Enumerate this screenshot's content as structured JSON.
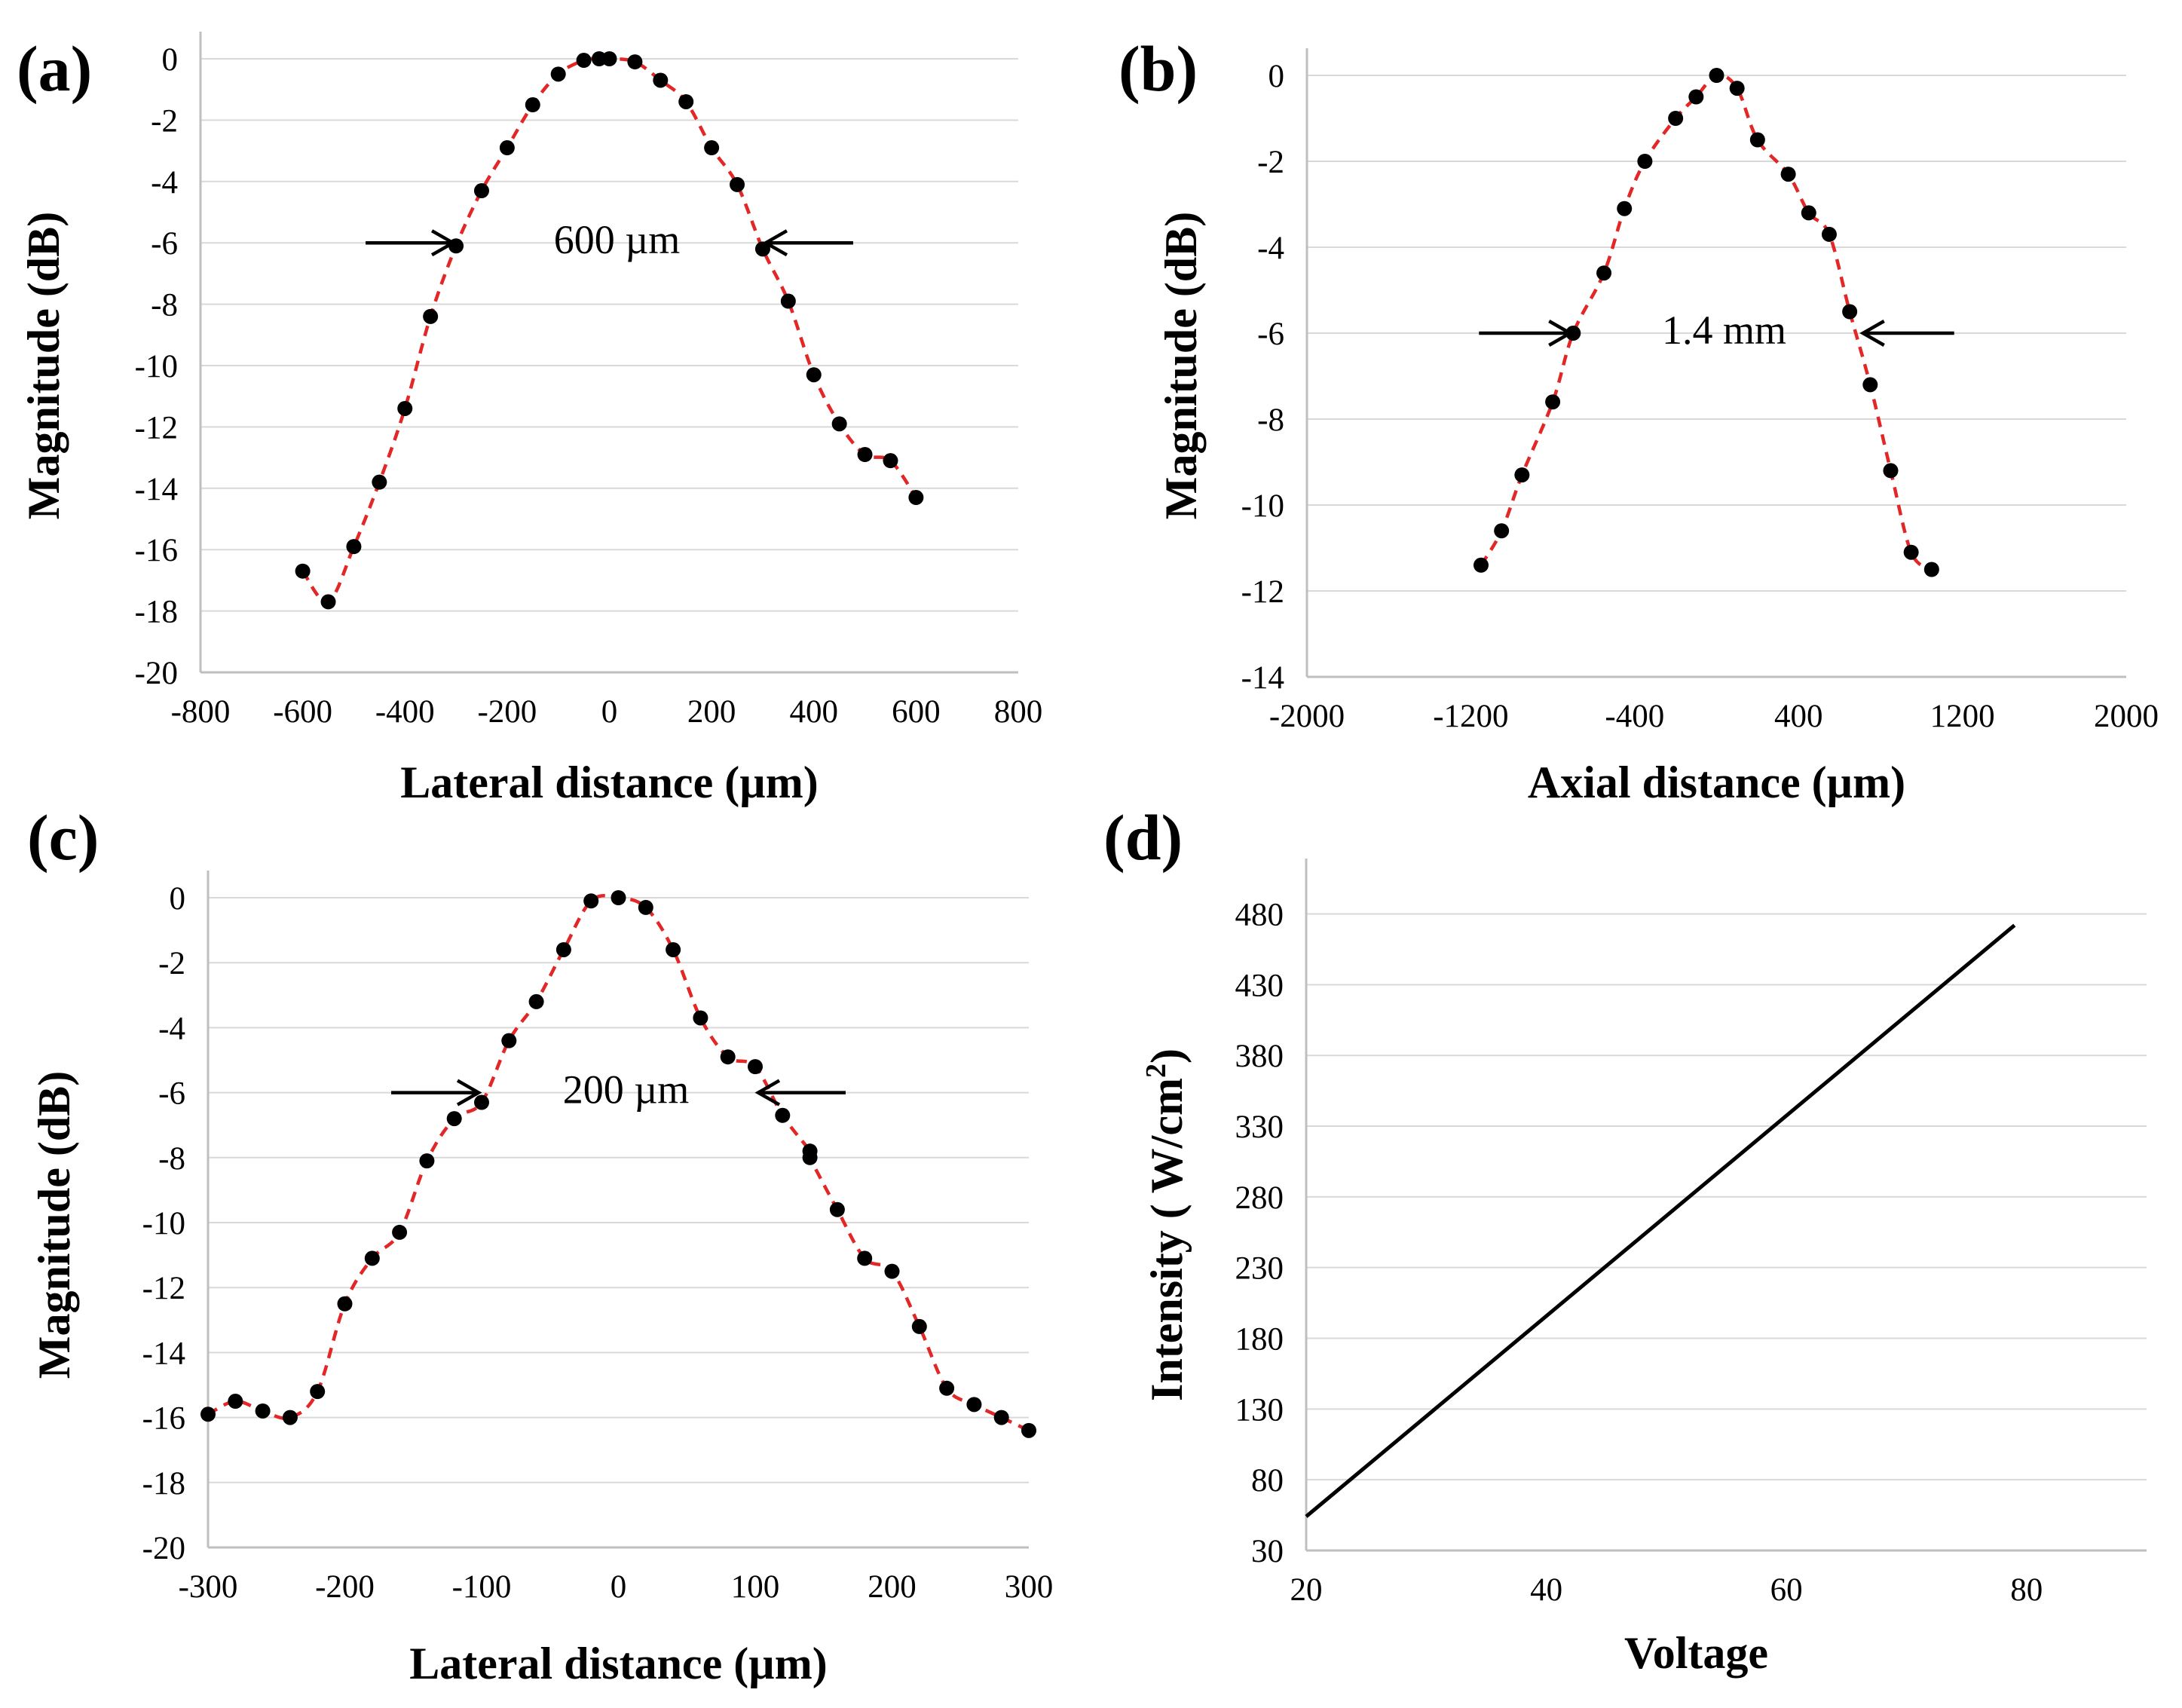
{
  "colors": {
    "fit_line": "#e32626",
    "marker": "#000000",
    "intensity_line": "#000000",
    "gridline": "#d9d9d9"
  },
  "chart_data": [
    {
      "panel": "(a)",
      "type": "scatter",
      "xlabel": "Lateral distance (µm)",
      "ylabel": "Magnitude (dB)",
      "xlim": [
        -800,
        800
      ],
      "ylim": [
        -20,
        0
      ],
      "xticks": [
        -800,
        -600,
        -400,
        -200,
        0,
        200,
        400,
        600,
        800
      ],
      "yticks": [
        0,
        -2,
        -4,
        -6,
        -8,
        -10,
        -12,
        -14,
        -16,
        -18,
        -20
      ],
      "grid": "horizontal",
      "legend": "none",
      "annotation": "600 µm",
      "annotation_markers": [
        -300,
        300
      ],
      "markers": "black circles",
      "fit_line": "red dashed",
      "x": [
        -600,
        -550,
        -500,
        -450,
        -400,
        -350,
        -300,
        -250,
        -200,
        -150,
        -100,
        -50,
        -20,
        0,
        50,
        100,
        150,
        200,
        250,
        300,
        350,
        400,
        450,
        500,
        550,
        600
      ],
      "y": [
        -16.7,
        -17.7,
        -15.9,
        -13.8,
        -11.4,
        -8.4,
        -6.1,
        -4.3,
        -2.9,
        -1.5,
        -0.5,
        -0.05,
        0,
        0,
        -0.1,
        -0.7,
        -1.4,
        -2.9,
        -4.1,
        -6.2,
        -7.9,
        -10.3,
        -11.9,
        -12.9,
        -13.1,
        -14.3
      ]
    },
    {
      "panel": "(b)",
      "type": "scatter",
      "xlabel": "Axial distance (µm)",
      "ylabel": "Magnitude (dB)",
      "xlim": [
        -2000,
        2000
      ],
      "ylim": [
        -14,
        0
      ],
      "xticks": [
        -2000,
        -1200,
        -400,
        400,
        1200,
        2000
      ],
      "yticks": [
        0,
        -2,
        -4,
        -6,
        -8,
        -10,
        -12,
        -14
      ],
      "grid": "horizontal",
      "legend": "none",
      "annotation": "1.4 mm",
      "annotation_markers": [
        -700,
        700
      ],
      "markers": "black circles",
      "fit_line": "red dashed",
      "x": [
        -1150,
        -1050,
        -950,
        -800,
        -700,
        -550,
        -450,
        -350,
        -200,
        -100,
        0,
        100,
        200,
        350,
        450,
        550,
        650,
        750,
        850,
        950,
        1050
      ],
      "y": [
        -11.4,
        -10.6,
        -9.3,
        -7.6,
        -6.0,
        -4.6,
        -3.1,
        -2.0,
        -1.0,
        -0.5,
        0,
        -0.3,
        -1.5,
        -2.3,
        -3.2,
        -3.7,
        -5.5,
        -7.2,
        -9.2,
        -11.1,
        -11.5
      ]
    },
    {
      "panel": "(c)",
      "type": "scatter",
      "xlabel": "Lateral distance (µm)",
      "ylabel": "Magnitude (dB)",
      "xlim": [
        -300,
        300
      ],
      "ylim": [
        -20,
        0
      ],
      "xticks": [
        -300,
        -200,
        -100,
        0,
        100,
        200,
        300
      ],
      "yticks": [
        0,
        -2,
        -4,
        -6,
        -8,
        -10,
        -12,
        -14,
        -16,
        -18,
        -20
      ],
      "grid": "horizontal",
      "legend": "none",
      "annotation": "200 µm",
      "annotation_markers": [
        -100,
        100
      ],
      "markers": "black circles",
      "fit_line": "red dashed",
      "x": [
        -300,
        -280,
        -260,
        -240,
        -220,
        -200,
        -180,
        -160,
        -140,
        -120,
        -100,
        -80,
        -60,
        -40,
        -20,
        0,
        20,
        40,
        60,
        80,
        100,
        120,
        140,
        140,
        160,
        180,
        200,
        220,
        240,
        260,
        280,
        300
      ],
      "y": [
        -15.9,
        -15.5,
        -15.8,
        -16.0,
        -15.2,
        -12.5,
        -11.1,
        -10.3,
        -8.1,
        -6.8,
        -6.3,
        -4.4,
        -3.2,
        -1.6,
        -0.1,
        0,
        -0.3,
        -1.6,
        -3.7,
        -4.9,
        -5.2,
        -6.7,
        -7.8,
        -8.0,
        -9.6,
        -11.1,
        -11.5,
        -13.2,
        -15.1,
        -15.6,
        -16.0,
        -16.4
      ]
    },
    {
      "panel": "(d)",
      "type": "line",
      "xlabel": "Voltage",
      "ylabel": "Intensity ( W/cm²)",
      "xlim": [
        20,
        90
      ],
      "ylim": [
        30,
        500
      ],
      "xticks": [
        20,
        40,
        60,
        80
      ],
      "yticks": [
        30,
        80,
        130,
        180,
        230,
        280,
        330,
        380,
        430,
        480
      ],
      "grid": "horizontal",
      "legend": "none",
      "x": [
        20,
        79
      ],
      "y": [
        54,
        472
      ]
    }
  ]
}
